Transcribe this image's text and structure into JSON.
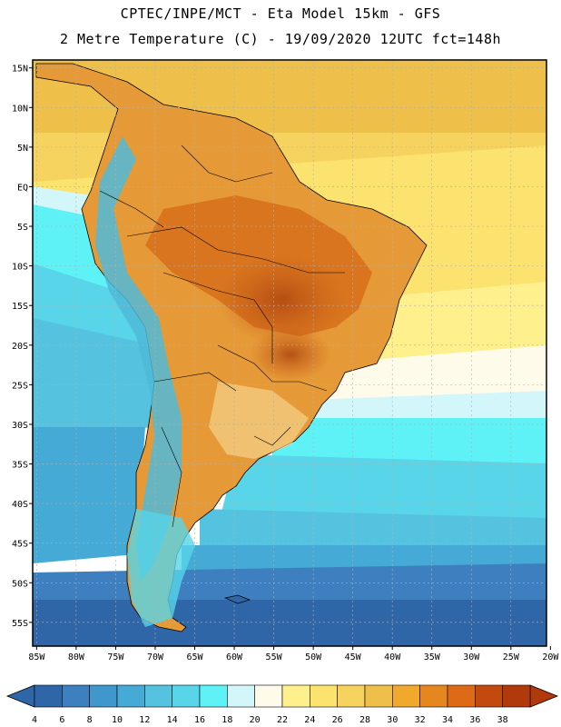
{
  "header": {
    "line1": "CPTEC/INPE/MCT -  Eta Model 15km - GFS",
    "line2": "2 Metre Temperature (C) - 19/09/2020 12UTC fct=148h"
  },
  "map": {
    "lat_labels": [
      "15N",
      "10N",
      "5N",
      "EQ",
      "5S",
      "10S",
      "15S",
      "20S",
      "25S",
      "30S",
      "35S",
      "40S",
      "45S",
      "50S",
      "55S"
    ],
    "lon_labels": [
      "85W",
      "80W",
      "75W",
      "70W",
      "65W",
      "60W",
      "55W",
      "50W",
      "45W",
      "40W",
      "35W",
      "30W",
      "25W",
      "20W"
    ],
    "lat_range": [
      -58,
      16
    ],
    "lon_range": [
      -85.5,
      -20.5
    ]
  },
  "colorbar": {
    "labels": [
      "4",
      "6",
      "8",
      "10",
      "12",
      "14",
      "16",
      "18",
      "20",
      "22",
      "24",
      "26",
      "28",
      "30",
      "32",
      "34",
      "36",
      "38"
    ],
    "colors": [
      "#2f66a8",
      "#3e7fbf",
      "#3f97cc",
      "#45abd6",
      "#55c3df",
      "#58d5e8",
      "#5ef2f6",
      "#d3f6fb",
      "#fffbea",
      "#fff08e",
      "#fce26e",
      "#f6d25f",
      "#eec049",
      "#f0a92c",
      "#e6861f",
      "#dc6a17",
      "#c24a0f",
      "#b03a0b"
    ]
  }
}
